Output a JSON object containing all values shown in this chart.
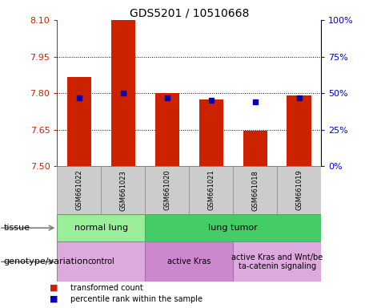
{
  "title": "GDS5201 / 10510668",
  "samples": [
    "GSM661022",
    "GSM661023",
    "GSM661020",
    "GSM661021",
    "GSM661018",
    "GSM661019"
  ],
  "red_values": [
    7.865,
    8.1,
    7.8,
    7.775,
    7.645,
    7.79
  ],
  "blue_values_pct": [
    47,
    50,
    47,
    45,
    44,
    47
  ],
  "ylim": [
    7.5,
    8.1
  ],
  "yticks_left": [
    7.5,
    7.65,
    7.8,
    7.95,
    8.1
  ],
  "yticks_right": [
    0,
    25,
    50,
    75,
    100
  ],
  "left_tick_color": "#cc2200",
  "right_tick_color": "#0000cc",
  "bar_color": "#cc2200",
  "dot_color": "#0000bb",
  "tissue_groups": [
    {
      "label": "normal lung",
      "span": [
        0,
        2
      ],
      "color": "#99ee99"
    },
    {
      "label": "lung tumor",
      "span": [
        2,
        6
      ],
      "color": "#44cc66"
    }
  ],
  "genotype_groups": [
    {
      "label": "control",
      "span": [
        0,
        2
      ],
      "color": "#ddaadd"
    },
    {
      "label": "active Kras",
      "span": [
        2,
        4
      ],
      "color": "#cc88cc"
    },
    {
      "label": "active Kras and Wnt/be\nta-catenin signaling",
      "span": [
        4,
        6
      ],
      "color": "#ddaadd"
    }
  ],
  "tissue_label": "tissue",
  "genotype_label": "genotype/variation",
  "legend_items": [
    {
      "label": "transformed count",
      "color": "#cc2200"
    },
    {
      "label": "percentile rank within the sample",
      "color": "#0000bb"
    }
  ],
  "base": 7.5,
  "bar_width": 0.55,
  "sample_box_color": "#cccccc",
  "sample_box_edge": "#888888"
}
